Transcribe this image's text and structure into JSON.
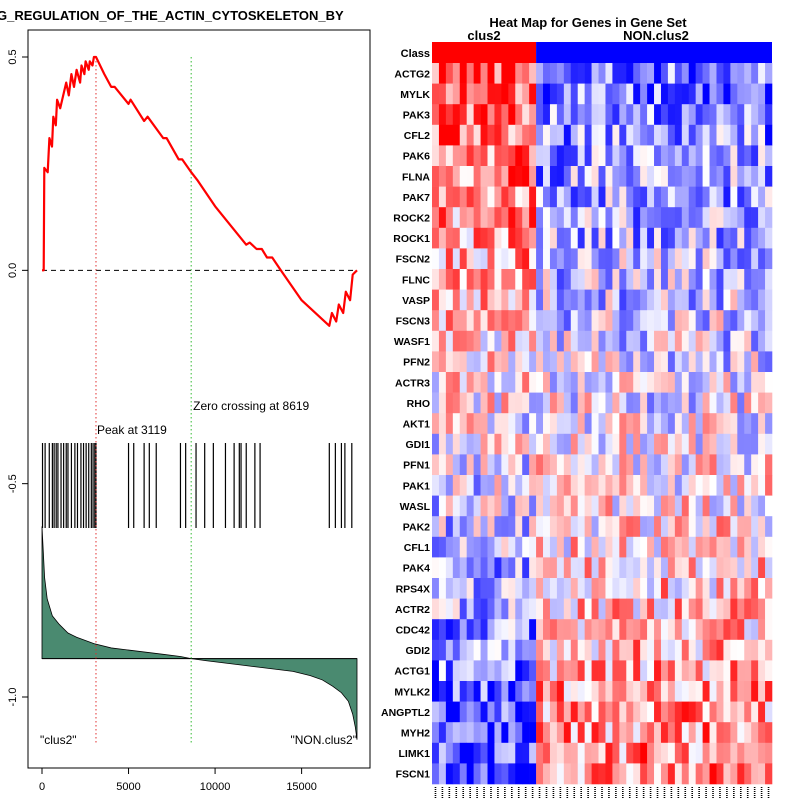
{
  "chart_data": [
    {
      "type": "line",
      "panel": "enrichment-plot",
      "title": "G_REGULATION_OF_THE_ACTIN_CYTOSKELETON_BY",
      "xlabel": "",
      "ylabel": "",
      "xlim": [
        0,
        18500
      ],
      "ylim": [
        -1.15,
        0.55
      ],
      "xticks": [
        0,
        5000,
        10000,
        15000
      ],
      "yticks": [
        0.5,
        0.0,
        -0.5,
        -1.0
      ],
      "ytick_labels": [
        "0.5",
        "0.0",
        "-0.5",
        "-1.0"
      ],
      "running_es": {
        "x": [
          0,
          100,
          130,
          330,
          430,
          580,
          650,
          800,
          870,
          1050,
          1400,
          1550,
          1700,
          1850,
          2000,
          2200,
          2280,
          2450,
          2520,
          2700,
          2760,
          2920,
          3000,
          3119,
          3600,
          4000,
          4200,
          5000,
          5120,
          5900,
          6100,
          7000,
          7200,
          7900,
          8100,
          8619,
          9000,
          10000,
          11000,
          11800,
          12000,
          12400,
          12700,
          13000,
          13300,
          13800,
          15000,
          16600,
          16750,
          17000,
          17150,
          17400,
          17550,
          17800,
          17950,
          18200
        ],
        "es": [
          0.0,
          0.0,
          0.24,
          0.23,
          0.31,
          0.29,
          0.36,
          0.34,
          0.4,
          0.38,
          0.44,
          0.41,
          0.46,
          0.43,
          0.47,
          0.44,
          0.48,
          0.46,
          0.49,
          0.47,
          0.49,
          0.48,
          0.5,
          0.5,
          0.46,
          0.43,
          0.43,
          0.39,
          0.4,
          0.35,
          0.36,
          0.31,
          0.31,
          0.26,
          0.26,
          0.23,
          0.21,
          0.15,
          0.1,
          0.06,
          0.065,
          0.05,
          0.05,
          0.03,
          0.03,
          0.0,
          -0.07,
          -0.13,
          -0.1,
          -0.12,
          -0.08,
          -0.1,
          -0.05,
          -0.07,
          -0.01,
          0.0
        ]
      },
      "ranked_metric": {
        "x": [
          0,
          50,
          150,
          300,
          600,
          1000,
          1500,
          2000,
          3000,
          4000,
          5000,
          6000,
          7000,
          8000,
          8619,
          9500,
          10500,
          11500,
          12500,
          13500,
          14500,
          15500,
          16200,
          16800,
          17300,
          17700,
          17950,
          18100,
          18200
        ],
        "y": [
          -0.6,
          -0.64,
          -0.72,
          -0.77,
          -0.81,
          -0.83,
          -0.85,
          -0.86,
          -0.875,
          -0.885,
          -0.89,
          -0.895,
          -0.9,
          -0.905,
          -0.91,
          -0.915,
          -0.92,
          -0.925,
          -0.93,
          -0.935,
          -0.94,
          -0.95,
          -0.96,
          -0.975,
          -0.99,
          -1.01,
          -1.04,
          -1.07,
          -1.1
        ],
        "baseline": -0.91
      },
      "hits": [
        30,
        180,
        420,
        600,
        700,
        820,
        920,
        1100,
        1250,
        1400,
        1500,
        1700,
        1900,
        2050,
        2250,
        2400,
        2550,
        2700,
        2850,
        2950,
        3050,
        3119,
        5000,
        5300,
        5900,
        6200,
        6600,
        8000,
        8300,
        8900,
        9400,
        9900,
        10600,
        11100,
        11400,
        11500,
        11800,
        12300,
        12600,
        16600,
        16950,
        17300,
        17500,
        17900
      ],
      "peak_label": "Peak at 3119",
      "peak_x": 3119,
      "zero_crossing_label": "Zero crossing at 8619",
      "zero_crossing_x": 8619,
      "left_group_label": "\"clus2\"",
      "right_group_label": "\"NON.clus2\""
    },
    {
      "type": "heatmap",
      "panel": "gene-heatmap",
      "title": "Heat Map for Genes in Gene Set",
      "class_row_label": "Class",
      "classes": [
        "clus2",
        "NON.clus2"
      ],
      "class_sample_counts": [
        15,
        34
      ],
      "class_colors": [
        "#ff0000",
        "#0000ff"
      ],
      "genes": [
        "ACTG2",
        "MYLK",
        "PAK3",
        "CFL2",
        "PAK6",
        "FLNA",
        "PAK7",
        "ROCK2",
        "ROCK1",
        "FSCN2",
        "FLNC",
        "VASP",
        "FSCN3",
        "WASF1",
        "PFN2",
        "ACTR3",
        "RHO",
        "AKT1",
        "GDI1",
        "PFN1",
        "PAK1",
        "WASL",
        "PAK2",
        "CFL1",
        "PAK4",
        "RPS4X",
        "ACTR2",
        "CDC42",
        "GDI2",
        "ACTG1",
        "MYLK2",
        "ANGPTL2",
        "MYH2",
        "LIMK1",
        "FSCN1"
      ],
      "color_scale": [
        "#0000ff",
        "#ffffff",
        "#ff0000"
      ]
    }
  ]
}
